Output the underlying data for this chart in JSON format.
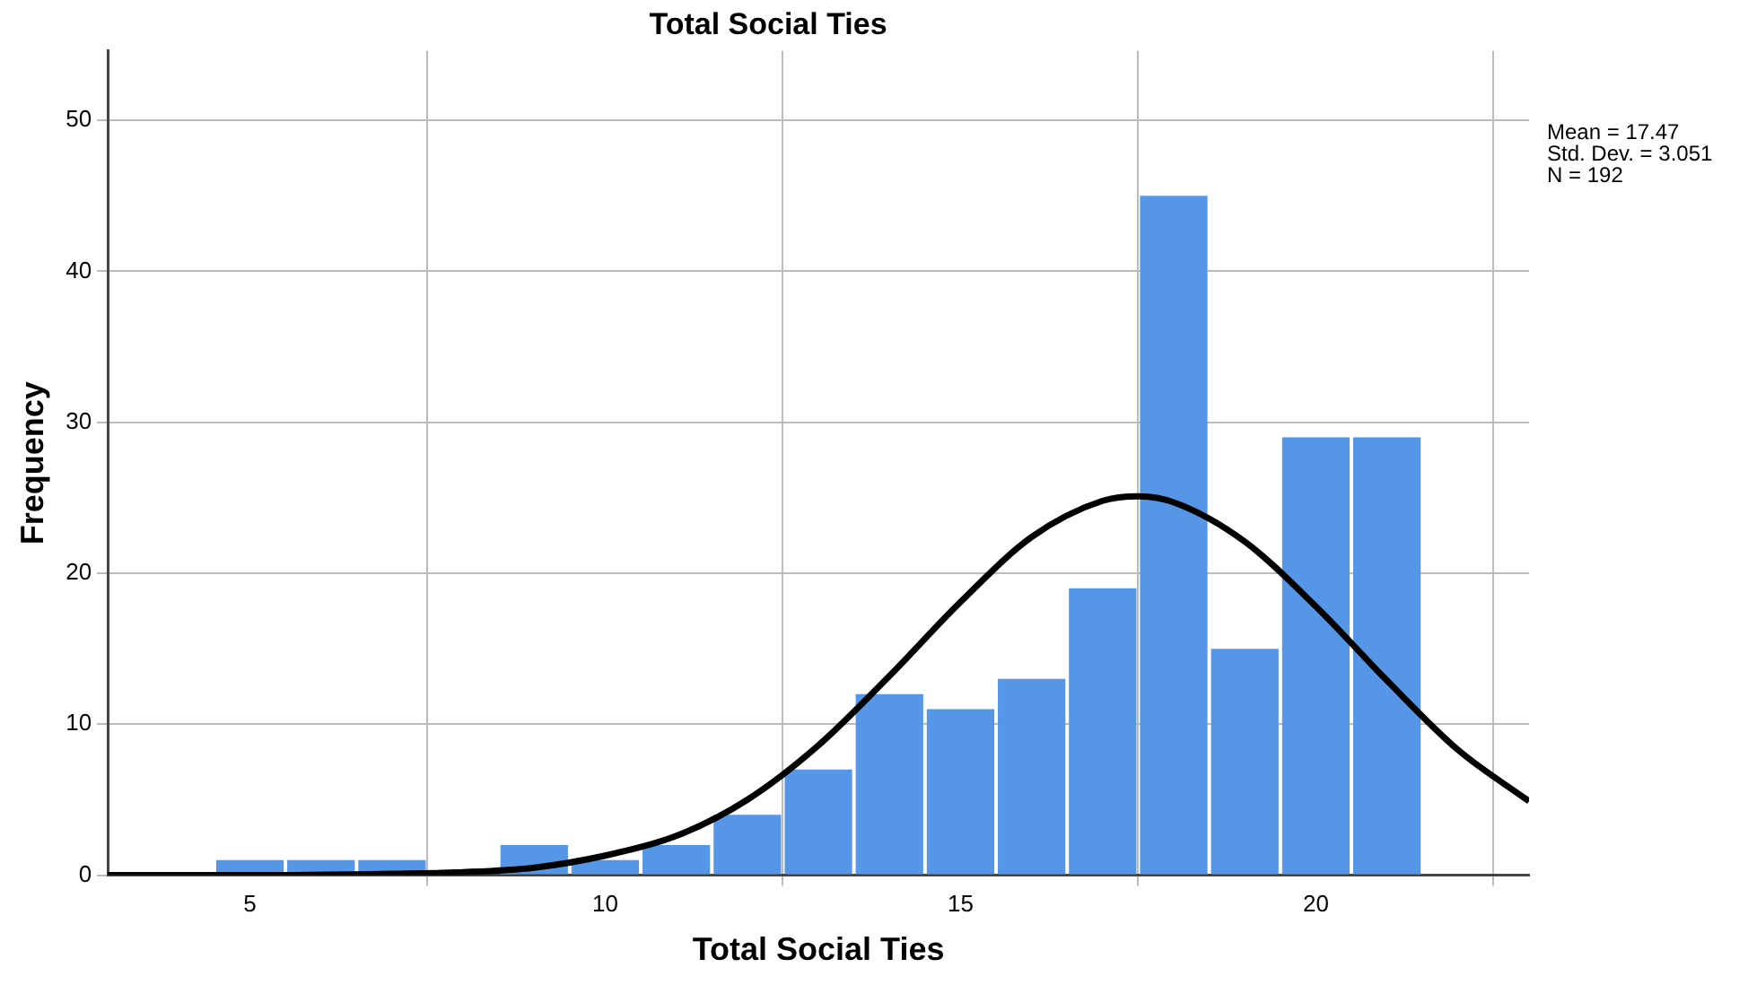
{
  "chart_data": {
    "type": "histogram",
    "title": "Total Social Ties",
    "xlabel": "Total Social Ties",
    "ylabel": "Frequency",
    "bins": [
      4.5,
      5.5,
      6.5,
      7.5,
      8.5,
      9.5,
      10.5,
      11.5,
      12.5,
      13.5,
      14.5,
      15.5,
      16.5,
      17.5,
      18.5,
      19.5,
      20.5,
      21.5
    ],
    "values": [
      1,
      1,
      1,
      0,
      2,
      1,
      2,
      4,
      7,
      12,
      11,
      13,
      19,
      45,
      15,
      29,
      29
    ],
    "color": "#5597e6",
    "series": [
      {
        "type": "line",
        "color": "#000000",
        "x": [
          3,
          5,
          7,
          8,
          9,
          10,
          11,
          12,
          13,
          14,
          15,
          16,
          17,
          17.5,
          18,
          19,
          20,
          21,
          22,
          23
        ],
        "values": [
          0,
          0,
          0.1,
          0.2,
          0.5,
          1.3,
          2.6,
          5,
          8.6,
          13.2,
          18.1,
          22.4,
          24.8,
          25.1,
          24.7,
          22.1,
          17.8,
          12.9,
          8.3,
          4.9
        ]
      }
    ],
    "xlim": [
      3,
      23
    ],
    "xticks": [
      5,
      10,
      15,
      20
    ],
    "ylim": [
      0,
      54.6
    ],
    "yticks": [
      0,
      10,
      20,
      30,
      40,
      50
    ],
    "grid": true,
    "annotations": [
      "Mean = 17.47",
      "Std. Dev. = 3.051",
      "N = 192"
    ]
  }
}
